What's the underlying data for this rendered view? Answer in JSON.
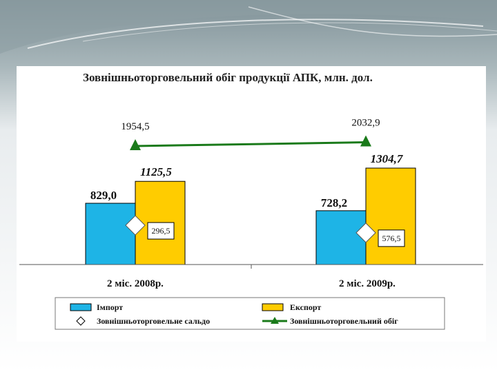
{
  "colors": {
    "import": "#1EB4E6",
    "export": "#FFCC00",
    "turnover": "#1A7A1A",
    "background": "#8E9FA5"
  },
  "chart_data": {
    "type": "bar",
    "title": "Зовнішньоторговельний обіг продукції АПК, млн. дол.",
    "categories": [
      "2 міс. 2008р.",
      "2 міс. 2009р."
    ],
    "series": [
      {
        "name": "Імпорт",
        "values": [
          829.0,
          728.2
        ],
        "labels": [
          "829,0",
          "728,2"
        ]
      },
      {
        "name": "Експорт",
        "values": [
          1125.5,
          1304.7
        ],
        "labels": [
          "1125,5",
          "1304,7"
        ]
      },
      {
        "name": "Зовнішньоторговельне сальдо",
        "values": [
          296.5,
          576.5
        ],
        "labels": [
          "296,5",
          "576,5"
        ]
      },
      {
        "name": "Зовнішньоторговельний обіг",
        "values": [
          1954.5,
          2032.9
        ],
        "labels": [
          "1954,5",
          "2032,9"
        ]
      }
    ],
    "legend": {
      "position": "bottom",
      "items": [
        "Імпорт",
        "Експорт",
        "Зовнішньоторговельне сальдо",
        "Зовнішньоторговельний обіг"
      ]
    },
    "grid": false
  }
}
